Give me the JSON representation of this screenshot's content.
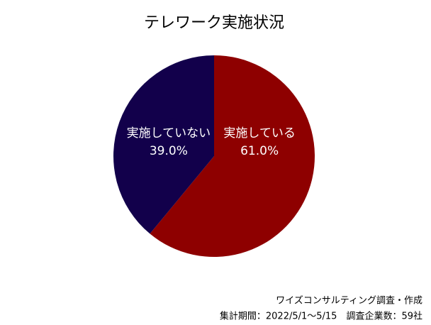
{
  "chart_data": {
    "type": "pie",
    "title": "テレワーク実施状況",
    "categories": [
      "実施している",
      "実施していない"
    ],
    "values": [
      61,
      39
    ],
    "value_labels": [
      "61.0%",
      "39.0%"
    ],
    "colors": [
      "#8e0000",
      "#12004b"
    ],
    "notes": [
      "ワイズコンサルティング調査・作成",
      "集計期間：2022/5/1～5/15　調査企業数：59社"
    ]
  }
}
